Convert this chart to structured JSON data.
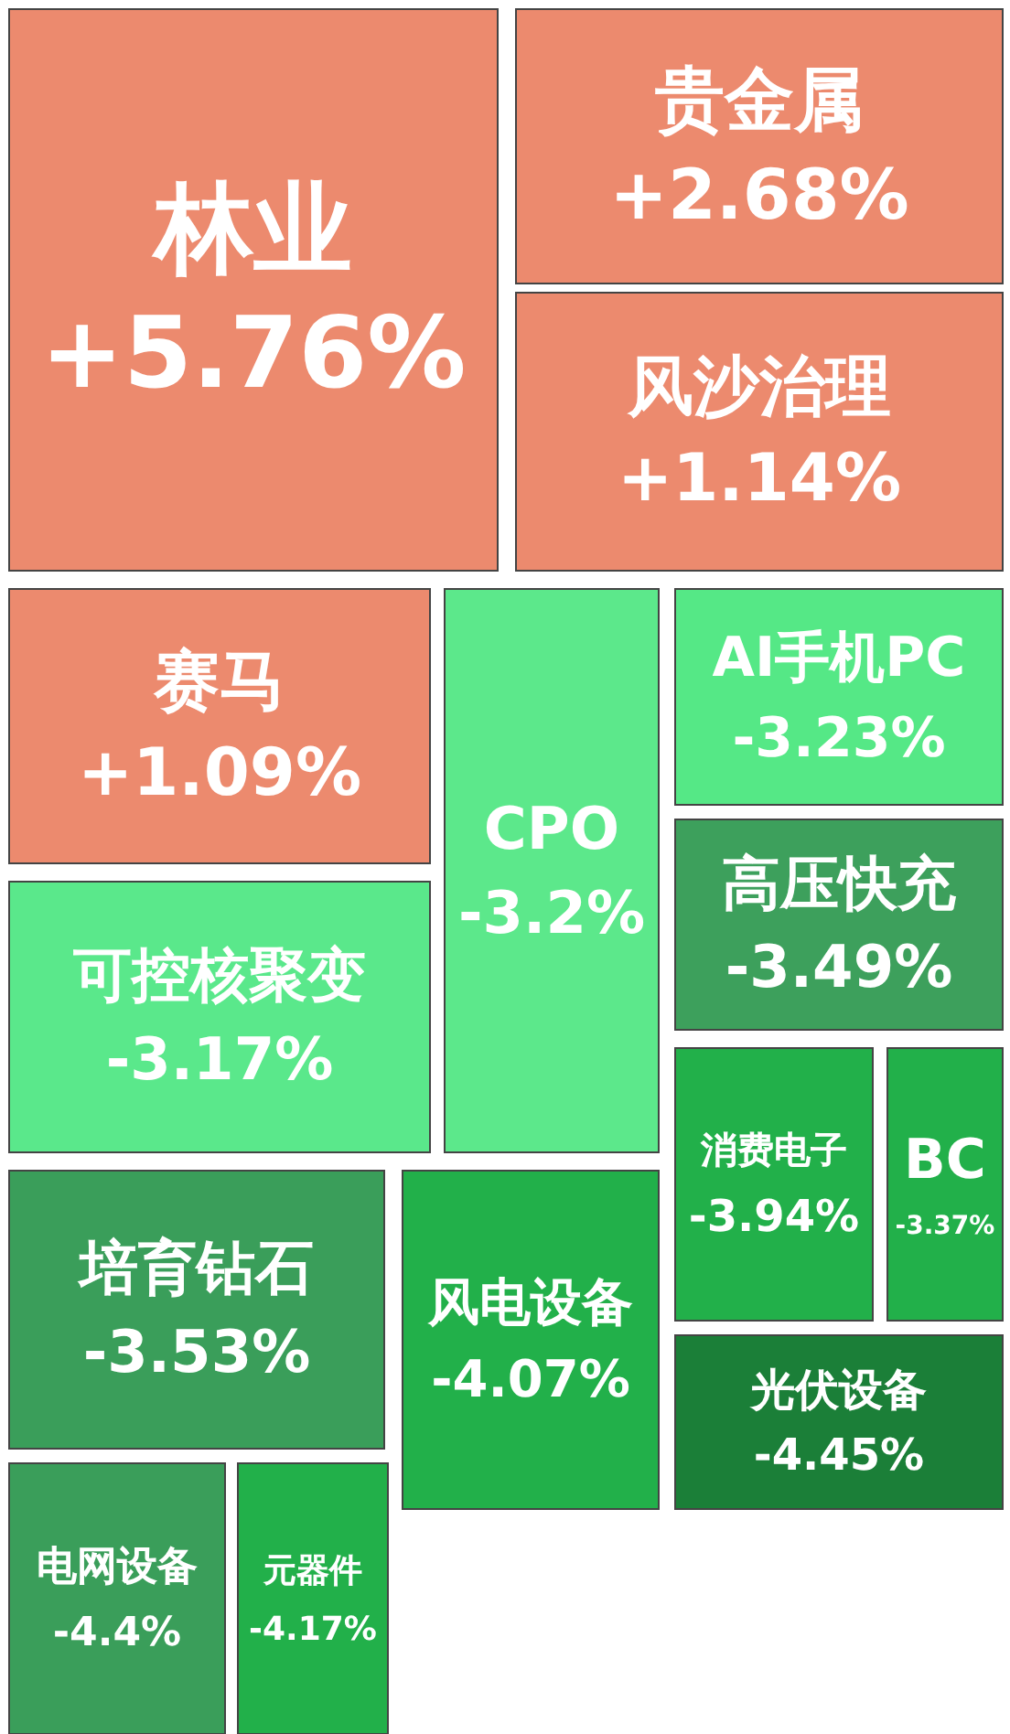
{
  "chart_data": {
    "type": "other",
    "categories": [
      "林业",
      "贵金属",
      "风沙治理",
      "赛马",
      "CPO",
      "AI手机PC",
      "高压快充",
      "可控核聚变",
      "消费电子",
      "BC",
      "培育钻石",
      "风电设备",
      "光伏设备",
      "电网设备",
      "元器件"
    ],
    "values": [
      5.76,
      2.68,
      1.14,
      1.09,
      -3.2,
      -3.23,
      -3.49,
      -3.17,
      -3.94,
      -3.37,
      -3.53,
      -4.07,
      -4.45,
      -4.4,
      -4.17
    ],
    "value_labels": [
      "+5.76%",
      "+2.68%",
      "+1.14%",
      "+1.09%",
      "-3.2%",
      "-3.23%",
      "-3.49%",
      "-3.17%",
      "-3.94%",
      "-3.37%",
      "-3.53%",
      "-4.07%",
      "-4.45%",
      "-4.4%",
      "-4.17%"
    ],
    "colors": [
      "#ec8a6e",
      "#ec8a6e",
      "#ec8a6e",
      "#ec8a6e",
      "#5ce88b",
      "#55e886",
      "#3da05c",
      "#5ae88b",
      "#22b04a",
      "#22b04a",
      "#3a9e5a",
      "#22b04a",
      "#1b7f38",
      "#3a9e5a",
      "#22b04a"
    ]
  }
}
